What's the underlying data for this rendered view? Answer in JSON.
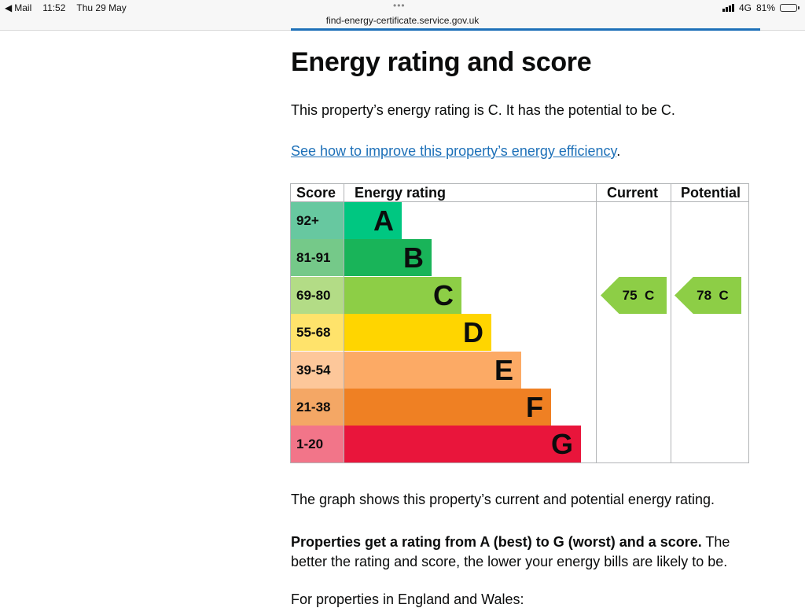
{
  "statusbar": {
    "back_app": "Mail",
    "time": "11:52",
    "date": "Thu 29 May",
    "network": "4G",
    "battery": "81%",
    "url": "find-energy-certificate.service.gov.uk"
  },
  "page": {
    "title": "Energy rating and score",
    "intro": "This property’s energy rating is C. It has the potential to be C.",
    "improve_link": "See how to improve this property’s energy efficiency",
    "improve_link_suffix": ".",
    "graph_note": "The graph shows this property’s current and potential energy rating.",
    "ratings_bold": "Properties get a rating from A (best) to G (worst) and a score.",
    "ratings_rest": " The better the rating and score, the lower your energy bills are likely to be.",
    "england_wales": "For properties in England and Wales:"
  },
  "epc": {
    "headers": {
      "score": "Score",
      "rating": "Energy rating",
      "current": "Current",
      "potential": "Potential"
    },
    "bands": [
      {
        "score": "92+",
        "letter": "A",
        "color": "#00c781",
        "score_bg": "#67c8a0"
      },
      {
        "score": "81-91",
        "letter": "B",
        "color": "#19b459",
        "score_bg": "#75c989"
      },
      {
        "score": "69-80",
        "letter": "C",
        "color": "#8dce46",
        "score_bg": "#b3dc86"
      },
      {
        "score": "55-68",
        "letter": "D",
        "color": "#ffd500",
        "score_bg": "#ffe36b"
      },
      {
        "score": "39-54",
        "letter": "E",
        "color": "#fcaa65",
        "score_bg": "#fdc79a"
      },
      {
        "score": "21-38",
        "letter": "F",
        "color": "#ef8023",
        "score_bg": "#f4a765"
      },
      {
        "score": "1-20",
        "letter": "G",
        "color": "#e9153b",
        "score_bg": "#f27589"
      }
    ],
    "current": {
      "value": "75",
      "letter": "C",
      "color": "#8dce46"
    },
    "potential": {
      "value": "78",
      "letter": "C",
      "color": "#8dce46"
    }
  }
}
